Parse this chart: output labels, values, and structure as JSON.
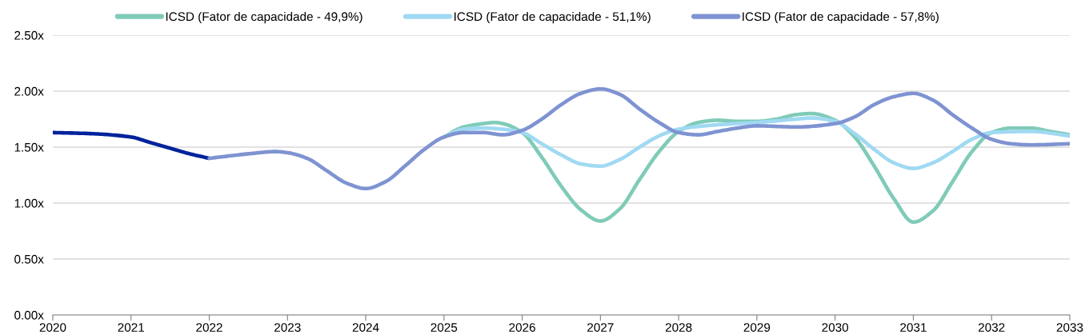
{
  "chart_data": {
    "type": "line",
    "series": [
      {
        "color": "#00229c",
        "x": [
          2020,
          2020.5,
          2021,
          2021.25,
          2021.5,
          2021.75,
          2022
        ],
        "values": [
          1.63,
          1.62,
          1.59,
          1.54,
          1.49,
          1.44,
          1.4
        ]
      },
      {
        "name": "ICSD (Fator de capacidade - 49,9%)",
        "color": "#7fcbb8",
        "x": [
          2025,
          2025.25,
          2025.5,
          2025.65,
          2025.75,
          2026,
          2026.25,
          2026.5,
          2026.75,
          2027,
          2027.25,
          2027.5,
          2027.75,
          2028,
          2028.25,
          2028.5,
          2028.75,
          2029,
          2029.25,
          2029.5,
          2029.7,
          2030,
          2030.25,
          2030.5,
          2030.75,
          2031,
          2031.25,
          2031.5,
          2031.75,
          2032,
          2032.25,
          2032.5,
          2032.75,
          2033
        ],
        "values": [
          1.59,
          1.68,
          1.71,
          1.72,
          1.71,
          1.63,
          1.41,
          1.15,
          0.94,
          0.84,
          0.95,
          1.21,
          1.46,
          1.64,
          1.72,
          1.74,
          1.73,
          1.73,
          1.75,
          1.79,
          1.8,
          1.74,
          1.59,
          1.33,
          1.04,
          0.83,
          0.93,
          1.19,
          1.46,
          1.63,
          1.67,
          1.67,
          1.64,
          1.61
        ]
      },
      {
        "name": "ICSD (Fator de capacidade - 51,1%)",
        "color": "#a0d9f2",
        "x": [
          2025,
          2025.25,
          2025.5,
          2025.75,
          2026,
          2026.25,
          2026.5,
          2026.75,
          2027,
          2027.25,
          2027.5,
          2027.75,
          2028,
          2028.5,
          2029,
          2029.5,
          2029.7,
          2030,
          2030.25,
          2030.5,
          2030.75,
          2031,
          2031.25,
          2031.5,
          2031.75,
          2032,
          2032.5,
          2033
        ],
        "values": [
          1.59,
          1.66,
          1.67,
          1.66,
          1.63,
          1.53,
          1.43,
          1.35,
          1.33,
          1.39,
          1.5,
          1.6,
          1.66,
          1.7,
          1.72,
          1.75,
          1.76,
          1.73,
          1.62,
          1.48,
          1.36,
          1.31,
          1.36,
          1.46,
          1.57,
          1.63,
          1.64,
          1.6
        ]
      },
      {
        "name": "ICSD (Fator de capacidade - 57,8%)",
        "color": "#7f93d2",
        "x": [
          2022,
          2022.5,
          2022.85,
          2023,
          2023.25,
          2023.5,
          2023.75,
          2024,
          2024.25,
          2024.5,
          2024.75,
          2025,
          2025.25,
          2025.5,
          2025.75,
          2026,
          2026.25,
          2026.5,
          2026.75,
          2027,
          2027.25,
          2027.5,
          2027.75,
          2028,
          2028.25,
          2028.5,
          2028.75,
          2029,
          2029.5,
          2030,
          2030.25,
          2030.5,
          2030.75,
          2031,
          2031.25,
          2031.5,
          2031.75,
          2032,
          2032.25,
          2032.5,
          2033
        ],
        "values": [
          1.4,
          1.44,
          1.46,
          1.45,
          1.4,
          1.29,
          1.18,
          1.13,
          1.19,
          1.33,
          1.48,
          1.59,
          1.63,
          1.63,
          1.61,
          1.65,
          1.75,
          1.88,
          1.98,
          2.02,
          1.97,
          1.84,
          1.72,
          1.63,
          1.61,
          1.64,
          1.67,
          1.69,
          1.68,
          1.71,
          1.77,
          1.88,
          1.95,
          1.98,
          1.92,
          1.79,
          1.67,
          1.57,
          1.53,
          1.52,
          1.53
        ]
      }
    ],
    "xlim": [
      2020,
      2033
    ],
    "xticks": [
      2020,
      2021,
      2022,
      2023,
      2024,
      2025,
      2026,
      2027,
      2028,
      2029,
      2030,
      2031,
      2032,
      2033
    ],
    "ylim": [
      0,
      2.5
    ],
    "yticks": [
      {
        "value": 0,
        "label": "0.00x"
      },
      {
        "value": 0.5,
        "label": "0.50x"
      },
      {
        "value": 1.0,
        "label": "1.00x"
      },
      {
        "value": 1.5,
        "label": "1.50x"
      },
      {
        "value": 2.0,
        "label": "2.00x"
      },
      {
        "value": 2.5,
        "label": "2.50x"
      }
    ],
    "grid": "y",
    "legend": "top",
    "line_style": "solid"
  }
}
